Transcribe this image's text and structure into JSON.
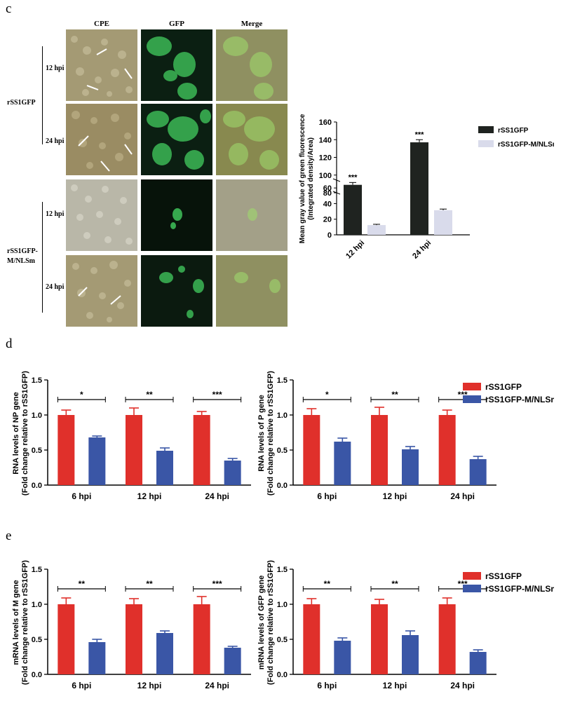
{
  "panel_c": {
    "letter": "c",
    "columns": [
      "CPE",
      "GFP",
      "Merge"
    ],
    "groups": [
      {
        "label": "rSS1GFP",
        "rows": [
          "12 hpi",
          "24 hpi"
        ]
      },
      {
        "label": "rSS1GFP-\nM/NLSm",
        "rows": [
          "12 hpi",
          "24 hpi"
        ]
      }
    ]
  },
  "panel_d": {
    "letter": "d"
  },
  "panel_e": {
    "letter": "e"
  },
  "colors": {
    "rSS1GFP_dark": "#1f2320",
    "rSS1GFP_m_light": "#d9dbeb",
    "red": "#e0302b",
    "blue": "#3a56a6"
  },
  "chart_data": [
    {
      "type": "bar",
      "ylabel": "Mean gray value of green fluorescence\n(Integrated density/Area)",
      "categories": [
        "12 hpi",
        "24 hpi"
      ],
      "series": [
        {
          "name": "rSS1GFP",
          "values": [
            64,
            137
          ],
          "errors": [
            3,
            3
          ]
        },
        {
          "name": "rSS1GFP-M/NLSm",
          "values": [
            12.5,
            31.5
          ],
          "errors": [
            1,
            1.5
          ]
        }
      ],
      "significance": [
        "***",
        "***"
      ],
      "axis_break": [
        70,
        80
      ],
      "lower_ticks": [
        0,
        20,
        40,
        60
      ],
      "upper_ticks": [
        80,
        100,
        120,
        140,
        160
      ],
      "legend": "right"
    },
    {
      "type": "bar",
      "ylabel": "RNA levels of NP gene\n(Fold change relative to rSS1GFP)",
      "categories": [
        "6 hpi",
        "12 hpi",
        "24 hpi"
      ],
      "series": [
        {
          "name": "rSS1GFP",
          "values": [
            1.0,
            1.0,
            1.0
          ],
          "errors": [
            0.07,
            0.1,
            0.05
          ]
        },
        {
          "name": "rSS1GFP-M/NLSm",
          "values": [
            0.68,
            0.49,
            0.35
          ],
          "errors": [
            0.02,
            0.04,
            0.03
          ]
        }
      ],
      "significance": [
        "*",
        "**",
        "***"
      ],
      "ylim": [
        0,
        1.5
      ],
      "ticks": [
        "0.0",
        "0.5",
        "1.0",
        "1.5"
      ]
    },
    {
      "type": "bar",
      "ylabel": "RNA levels of P gene\n(Fold change relative to rSS1GFP)",
      "categories": [
        "6 hpi",
        "12 hpi",
        "24 hpi"
      ],
      "series": [
        {
          "name": "rSS1GFP",
          "values": [
            1.0,
            1.0,
            1.0
          ],
          "errors": [
            0.09,
            0.11,
            0.07
          ]
        },
        {
          "name": "rSS1GFP-M/NLSm",
          "values": [
            0.62,
            0.51,
            0.37
          ],
          "errors": [
            0.05,
            0.04,
            0.04
          ]
        }
      ],
      "significance": [
        "*",
        "**",
        "***"
      ],
      "ylim": [
        0,
        1.5
      ],
      "ticks": [
        "0.0",
        "0.5",
        "1.0",
        "1.5"
      ],
      "legend": "right"
    },
    {
      "type": "bar",
      "ylabel": "mRNA levels of M gene\n(Fold change relative to rSS1GFP)",
      "categories": [
        "6 hpi",
        "12 hpi",
        "24 hpi"
      ],
      "series": [
        {
          "name": "rSS1GFP",
          "values": [
            1.0,
            1.0,
            1.0
          ],
          "errors": [
            0.09,
            0.08,
            0.11
          ]
        },
        {
          "name": "rSS1GFP-M/NLSm",
          "values": [
            0.46,
            0.59,
            0.38
          ],
          "errors": [
            0.04,
            0.03,
            0.02
          ]
        }
      ],
      "significance": [
        "**",
        "**",
        "***"
      ],
      "ylim": [
        0,
        1.5
      ],
      "ticks": [
        "0.0",
        "0.5",
        "1.0",
        "1.5"
      ]
    },
    {
      "type": "bar",
      "ylabel": "mRNA levels of GFP gene\n(Fold change relative to rSS1GFP)",
      "categories": [
        "6 hpi",
        "12 hpi",
        "24 hpi"
      ],
      "series": [
        {
          "name": "rSS1GFP",
          "values": [
            1.0,
            1.0,
            1.0
          ],
          "errors": [
            0.08,
            0.07,
            0.09
          ]
        },
        {
          "name": "rSS1GFP-M/NLSm",
          "values": [
            0.48,
            0.56,
            0.32
          ],
          "errors": [
            0.04,
            0.06,
            0.03
          ]
        }
      ],
      "significance": [
        "**",
        "**",
        "***"
      ],
      "ylim": [
        0,
        1.5
      ],
      "ticks": [
        "0.0",
        "0.5",
        "1.0",
        "1.5"
      ],
      "legend": "right"
    }
  ]
}
